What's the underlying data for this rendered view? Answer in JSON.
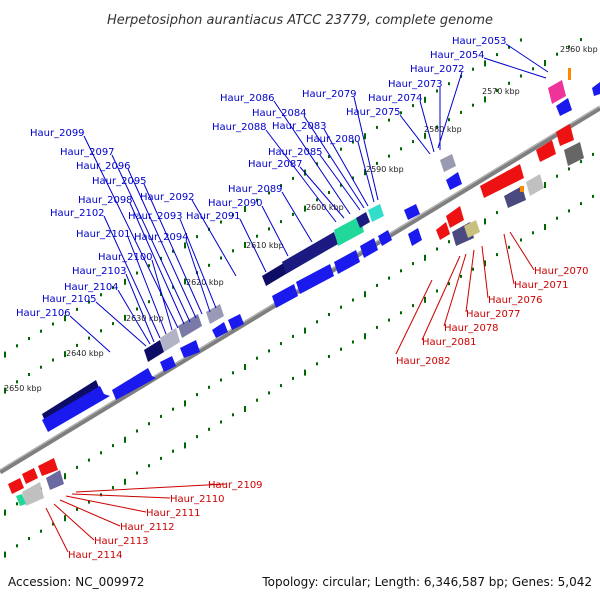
{
  "header": {
    "title": "Herpetosiphon aurantiacus ATCC 23779, complete genome"
  },
  "footer": {
    "accession": "Accession: NC_009972",
    "topology": "Topology: circular; Length: 6,346,587 bp; Genes: 5,042"
  },
  "colors": {
    "forward_label": "#0000cc",
    "reverse_label": "#cc0000",
    "backbone": "#7f7f7f",
    "tick": "#006600"
  },
  "kbp_ticks": [
    "2560 kbp",
    "2570 kbp",
    "2580 kbp",
    "2590 kbp",
    "2600 kbp",
    "2610 kbp",
    "2620 kbp",
    "2630 kbp",
    "2640 kbp",
    "2650 kbp"
  ],
  "forward_genes": [
    "Haur_2053",
    "Haur_2054",
    "Haur_2072",
    "Haur_2073",
    "Haur_2074",
    "Haur_2075",
    "Haur_2079",
    "Haur_2080",
    "Haur_2083",
    "Haur_2084",
    "Haur_2085",
    "Haur_2086",
    "Haur_2087",
    "Haur_2088",
    "Haur_2089",
    "Haur_2090",
    "Haur_2091",
    "Haur_2092",
    "Haur_2093",
    "Haur_2094",
    "Haur_2095",
    "Haur_2096",
    "Haur_2097",
    "Haur_2098",
    "Haur_2099",
    "Haur_2100",
    "Haur_2101",
    "Haur_2102",
    "Haur_2103",
    "Haur_2104",
    "Haur_2105",
    "Haur_2106"
  ],
  "reverse_genes": [
    "Haur_2070",
    "Haur_2071",
    "Haur_2076",
    "Haur_2077",
    "Haur_2078",
    "Haur_2081",
    "Haur_2082",
    "Haur_2109",
    "Haur_2110",
    "Haur_2111",
    "Haur_2112",
    "Haur_2113",
    "Haur_2114"
  ]
}
